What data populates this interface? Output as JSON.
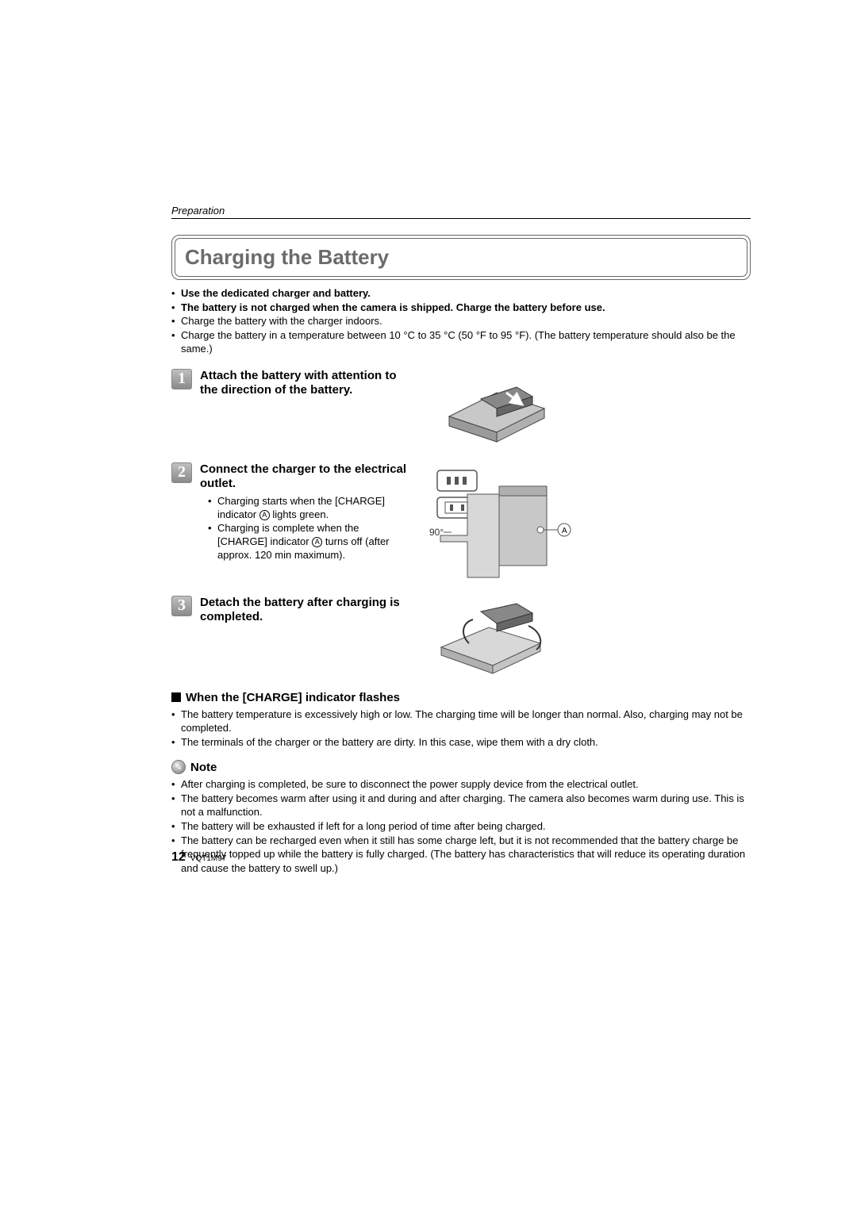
{
  "section": "Preparation",
  "title": "Charging the Battery",
  "intro": [
    {
      "text": "Use the dedicated charger and battery.",
      "bold": true
    },
    {
      "text": "The battery is not charged when the camera is shipped. Charge the battery before use.",
      "bold": true
    },
    {
      "text": "Charge the battery with the charger indoors.",
      "bold": false
    },
    {
      "text": "Charge the battery in a temperature between 10 °C to 35 °C (50 °F to 95 °F). (The battery temperature should also be the same.)",
      "bold": false
    }
  ],
  "steps": [
    {
      "num": "1",
      "title": "Attach the battery with attention to the direction of the battery.",
      "bullets": []
    },
    {
      "num": "2",
      "title": "Connect the charger to the electrical outlet.",
      "bullets": [
        "Charging starts when the [CHARGE] indicator Ⓐ lights green.",
        "Charging is complete when the [CHARGE] indicator Ⓐ turns off (after approx. 120 min maximum)."
      ],
      "angle": "90°"
    },
    {
      "num": "3",
      "title": "Detach the battery after charging is completed.",
      "bullets": []
    }
  ],
  "flash_heading": "When the [CHARGE] indicator flashes",
  "flash_bullets": [
    "The battery temperature is excessively high or low. The charging time will be longer than normal. Also, charging may not be completed.",
    "The terminals of the charger or the battery are dirty. In this case, wipe them with a dry cloth."
  ],
  "note_label": "Note",
  "note_bullets": [
    "After charging is completed, be sure to disconnect the power supply device from the electrical outlet.",
    "The battery becomes warm after using it and during and after charging. The camera also becomes warm during use. This is not a malfunction.",
    "The battery will be exhausted if left for a long period of time after being charged.",
    "The battery can be recharged even when it still has some charge left, but it is not recommended that the battery charge be frequently topped up while the battery is fully charged. (The battery has characteristics that will reduce its operating duration and cause the battery to swell up.)"
  ],
  "page_num": "12",
  "doc_code": "VQT1M97",
  "colors": {
    "title_gray": "#6b6b6b",
    "step_badge_bg": "#a0a0a0"
  }
}
